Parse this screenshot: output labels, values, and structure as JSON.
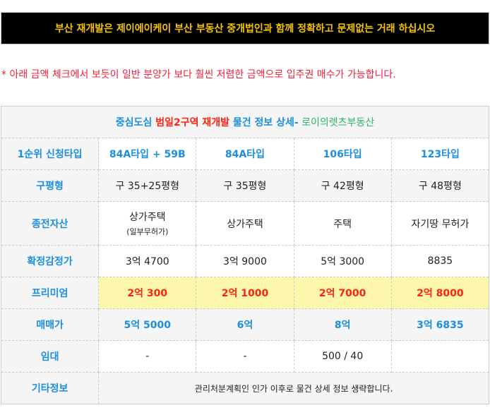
{
  "banner": "부산 재개발은 제이에이케이 부산 부동산 중개법인과 함께 정확하고 문제없는 거래 하십시오",
  "notice": "* 아래 금액 체크에서 보듯이 일반 분양가 보다 훨씬 저렴한 금액으로 입주권 매수가 가능합니다.",
  "table": {
    "title": {
      "part1": "중심도심 ",
      "part2": "범일2구역 재개발",
      "part3": " 물건 정보 상세-",
      "part4": " 로이의렛츠부동산"
    },
    "rows": [
      {
        "label": "1순위 신청타입",
        "cells": [
          "84A타입 + 59B",
          "84A타입",
          "106타입",
          "123타입"
        ]
      },
      {
        "label": "구평형",
        "cells": [
          "구 35+25평형",
          "구 35평형",
          "구 42평형",
          "구 48평형"
        ]
      },
      {
        "label": "종전자산",
        "cells": [
          "상가주택",
          "상가주택",
          "주택",
          "자기땅 무허가"
        ],
        "sub": "(일부무허가)"
      },
      {
        "label": "확정감정가",
        "cells": [
          "3억 4700",
          "3억 9000",
          "5억 3000",
          "8835"
        ]
      },
      {
        "label": "프리미엄",
        "cells": [
          "2억 300",
          "2억 1000",
          "2억 7000",
          "2억 8000"
        ]
      },
      {
        "label": "매매가",
        "cells": [
          "5억 5000",
          "6억",
          "8억",
          "3억 6835"
        ]
      },
      {
        "label": "임대",
        "cells": [
          "-",
          "-",
          "500 / 40",
          ""
        ]
      },
      {
        "label": "기타정보",
        "note": "관리처분계획인 인가 이후로 물건 상세 정보 생략합니다."
      }
    ]
  },
  "colors": {
    "banner_text": "#f5c400",
    "label": "#1a8fe0",
    "premium": "#f21",
    "premium_bg": "#fdf7ae"
  }
}
